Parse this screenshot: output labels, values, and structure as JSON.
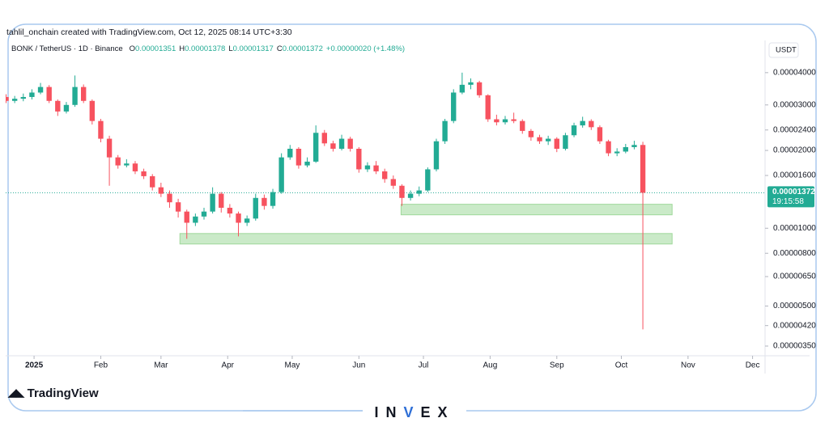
{
  "chart_data": {
    "type": "candlestick",
    "attribution": "tahlil_onchain created with TradingView.com, Oct 12, 2025 08:14 UTC+3:30",
    "symbol": "BONK / TetherUS · 1D · Binance",
    "ohlc": [
      {
        "key": "O",
        "value": "0.00001351"
      },
      {
        "key": "H",
        "value": "0.00001378"
      },
      {
        "key": "L",
        "value": "0.00001317"
      },
      {
        "key": "C",
        "value": "0.00001372"
      }
    ],
    "change": "+0.00000020 (+1.48%)",
    "currency": "USDT",
    "last_price": {
      "value": 1.372e-05,
      "label": "0.00001372"
    },
    "countdown": "19:15:58",
    "logo": "TradingView",
    "watermark": [
      "IN",
      "V",
      "EX"
    ],
    "up_color": "#22ab94",
    "down_color": "#f7525f",
    "log_scale": true,
    "grid": false,
    "xlim": [
      -0.05,
      88.2
    ],
    "xticks": [
      {
        "value": 3.25,
        "label": "2025"
      },
      {
        "value": 11,
        "label": "Feb"
      },
      {
        "value": 18,
        "label": "Mar"
      },
      {
        "value": 25.75,
        "label": "Apr"
      },
      {
        "value": 33.25,
        "label": "May"
      },
      {
        "value": 41,
        "label": "Jun"
      },
      {
        "value": 48.5,
        "label": "Jul"
      },
      {
        "value": 56.25,
        "label": "Aug"
      },
      {
        "value": 64,
        "label": "Sep"
      },
      {
        "value": 71.5,
        "label": "Oct"
      },
      {
        "value": 79.25,
        "label": "Nov"
      },
      {
        "value": 86.75,
        "label": "Dec"
      }
    ],
    "ylim": [
      3.21e-06,
      5.33e-05
    ],
    "yticks": [
      {
        "value": 4e-05,
        "label": "0.00004000"
      },
      {
        "value": 3e-05,
        "label": "0.00003000"
      },
      {
        "value": 2.4e-05,
        "label": "0.00002400"
      },
      {
        "value": 2e-05,
        "label": "0.00002000"
      },
      {
        "value": 1.6e-05,
        "label": "0.00001600"
      },
      {
        "value": 1e-05,
        "label": "0.00001000"
      },
      {
        "value": 8e-06,
        "label": "0.00000800"
      },
      {
        "value": 6.5e-06,
        "label": "0.00000650"
      },
      {
        "value": 5e-06,
        "label": "0.00000500"
      },
      {
        "value": 4.2e-06,
        "label": "0.00000420"
      },
      {
        "value": 3.5e-06,
        "label": "0.00000350"
      }
    ],
    "zones": [
      {
        "x": [
          45.9,
          77.4
        ],
        "y": [
          1.127e-05,
          1.238e-05
        ]
      },
      {
        "x": [
          20.2,
          77.4
        ],
        "y": [
          8.69e-06,
          9.54e-06
        ]
      }
    ],
    "zone_color": "#9fd89a",
    "candles": [
      [
        3.22e-05,
        3.3e-05,
        3.05e-05,
        3.11e-05
      ],
      [
        3.11e-05,
        3.25e-05,
        3.05e-05,
        3.17e-05
      ],
      [
        3.17e-05,
        3.32e-05,
        3.1e-05,
        3.22e-05
      ],
      [
        3.22e-05,
        3.45e-05,
        3.15e-05,
        3.35e-05
      ],
      [
        3.35e-05,
        3.65e-05,
        3.3e-05,
        3.52e-05
      ],
      [
        3.52e-05,
        3.58e-05,
        3.05e-05,
        3.11e-05
      ],
      [
        3.11e-05,
        3.15e-05,
        2.72e-05,
        2.83e-05
      ],
      [
        2.83e-05,
        3.08e-05,
        2.78e-05,
        3e-05
      ],
      [
        3e-05,
        3.9e-05,
        2.95e-05,
        3.52e-05
      ],
      [
        3.52e-05,
        3.6e-05,
        3.05e-05,
        3.11e-05
      ],
      [
        3.11e-05,
        3.15e-05,
        2.52e-05,
        2.6e-05
      ],
      [
        2.6e-05,
        2.65e-05,
        2.15e-05,
        2.22e-05
      ],
      [
        2.22e-05,
        2.28e-05,
        1.46e-05,
        1.88e-05
      ],
      [
        1.88e-05,
        1.92e-05,
        1.7e-05,
        1.75e-05
      ],
      [
        1.75e-05,
        1.85e-05,
        1.72e-05,
        1.78e-05
      ],
      [
        1.78e-05,
        1.82e-05,
        1.62e-05,
        1.66e-05
      ],
      [
        1.66e-05,
        1.7e-05,
        1.55e-05,
        1.59e-05
      ],
      [
        1.59e-05,
        1.62e-05,
        1.4e-05,
        1.44e-05
      ],
      [
        1.44e-05,
        1.5e-05,
        1.32e-05,
        1.36e-05
      ],
      [
        1.36e-05,
        1.4e-05,
        1.2e-05,
        1.26e-05
      ],
      [
        1.26e-05,
        1.3e-05,
        1.1e-05,
        1.16e-05
      ],
      [
        1.16e-05,
        1.18e-05,
        9.1e-06,
        1.05e-05
      ],
      [
        1.05e-05,
        1.14e-05,
        1.02e-05,
        1.11e-05
      ],
      [
        1.11e-05,
        1.2e-05,
        1.08e-05,
        1.16e-05
      ],
      [
        1.16e-05,
        1.44e-05,
        1.14e-05,
        1.36e-05
      ],
      [
        1.36e-05,
        1.38e-05,
        1.15e-05,
        1.2e-05
      ],
      [
        1.2e-05,
        1.24e-05,
        1.1e-05,
        1.14e-05
      ],
      [
        1.14e-05,
        1.16e-05,
        9.3e-06,
        1.05e-05
      ],
      [
        1.05e-05,
        1.12e-05,
        1.02e-05,
        1.09e-05
      ],
      [
        1.09e-05,
        1.36e-05,
        1.07e-05,
        1.31e-05
      ],
      [
        1.31e-05,
        1.35e-05,
        1.18e-05,
        1.22e-05
      ],
      [
        1.22e-05,
        1.42e-05,
        1.19e-05,
        1.38e-05
      ],
      [
        1.38e-05,
        1.95e-05,
        1.36e-05,
        1.88e-05
      ],
      [
        1.88e-05,
        2.1e-05,
        1.84e-05,
        2.03e-05
      ],
      [
        2.03e-05,
        2.06e-05,
        1.7e-05,
        1.75e-05
      ],
      [
        1.75e-05,
        1.88e-05,
        1.72e-05,
        1.81e-05
      ],
      [
        1.81e-05,
        2.5e-05,
        1.79e-05,
        2.34e-05
      ],
      [
        2.34e-05,
        2.4e-05,
        2.08e-05,
        2.13e-05
      ],
      [
        2.13e-05,
        2.18e-05,
        1.98e-05,
        2.03e-05
      ],
      [
        2.03e-05,
        2.3e-05,
        2e-05,
        2.22e-05
      ],
      [
        2.22e-05,
        2.26e-05,
        1.98e-05,
        2.03e-05
      ],
      [
        2.03e-05,
        2.06e-05,
        1.64e-05,
        1.69e-05
      ],
      [
        1.69e-05,
        1.8e-05,
        1.65e-05,
        1.75e-05
      ],
      [
        1.75e-05,
        1.82e-05,
        1.62e-05,
        1.66e-05
      ],
      [
        1.66e-05,
        1.7e-05,
        1.5e-05,
        1.55e-05
      ],
      [
        1.55e-05,
        1.6e-05,
        1.42e-05,
        1.46e-05
      ],
      [
        1.46e-05,
        1.48e-05,
        1.22e-05,
        1.31e-05
      ],
      [
        1.31e-05,
        1.4e-05,
        1.28e-05,
        1.36e-05
      ],
      [
        1.36e-05,
        1.45e-05,
        1.33e-05,
        1.4e-05
      ],
      [
        1.4e-05,
        1.72e-05,
        1.38e-05,
        1.69e-05
      ],
      [
        1.69e-05,
        2.22e-05,
        1.66e-05,
        2.17e-05
      ],
      [
        2.17e-05,
        2.65e-05,
        2.12e-05,
        2.6e-05
      ],
      [
        2.6e-05,
        3.45e-05,
        2.55e-05,
        3.35e-05
      ],
      [
        3.35e-05,
        4e-05,
        3.3e-05,
        3.59e-05
      ],
      [
        3.59e-05,
        3.8e-05,
        3.45e-05,
        3.67e-05
      ],
      [
        3.67e-05,
        3.72e-05,
        3.2e-05,
        3.27e-05
      ],
      [
        3.27e-05,
        3.3e-05,
        2.58e-05,
        2.64e-05
      ],
      [
        2.64e-05,
        2.75e-05,
        2.5e-05,
        2.57e-05
      ],
      [
        2.57e-05,
        2.72e-05,
        2.52e-05,
        2.64e-05
      ],
      [
        2.64e-05,
        2.8e-05,
        2.55e-05,
        2.6e-05
      ],
      [
        2.6e-05,
        2.64e-05,
        2.32e-05,
        2.38e-05
      ],
      [
        2.38e-05,
        2.42e-05,
        2.18e-05,
        2.25e-05
      ],
      [
        2.25e-05,
        2.3e-05,
        2.12e-05,
        2.17e-05
      ],
      [
        2.17e-05,
        2.28e-05,
        2.1e-05,
        2.22e-05
      ],
      [
        2.22e-05,
        2.25e-05,
        1.97e-05,
        2.03e-05
      ],
      [
        2.03e-05,
        2.34e-05,
        2e-05,
        2.29e-05
      ],
      [
        2.29e-05,
        2.56e-05,
        2.25e-05,
        2.5e-05
      ],
      [
        2.5e-05,
        2.7e-05,
        2.45e-05,
        2.6e-05
      ],
      [
        2.6e-05,
        2.64e-05,
        2.4e-05,
        2.46e-05
      ],
      [
        2.46e-05,
        2.5e-05,
        2.12e-05,
        2.17e-05
      ],
      [
        2.17e-05,
        2.2e-05,
        1.9e-05,
        1.95e-05
      ],
      [
        1.95e-05,
        2.04e-05,
        1.9e-05,
        1.98e-05
      ],
      [
        1.98e-05,
        2.12e-05,
        1.95e-05,
        2.06e-05
      ],
      [
        2.06e-05,
        2.18e-05,
        2.02e-05,
        2.1e-05
      ],
      [
        2.1e-05,
        2.16e-05,
        4.06e-06,
        1.372e-05
      ]
    ]
  }
}
